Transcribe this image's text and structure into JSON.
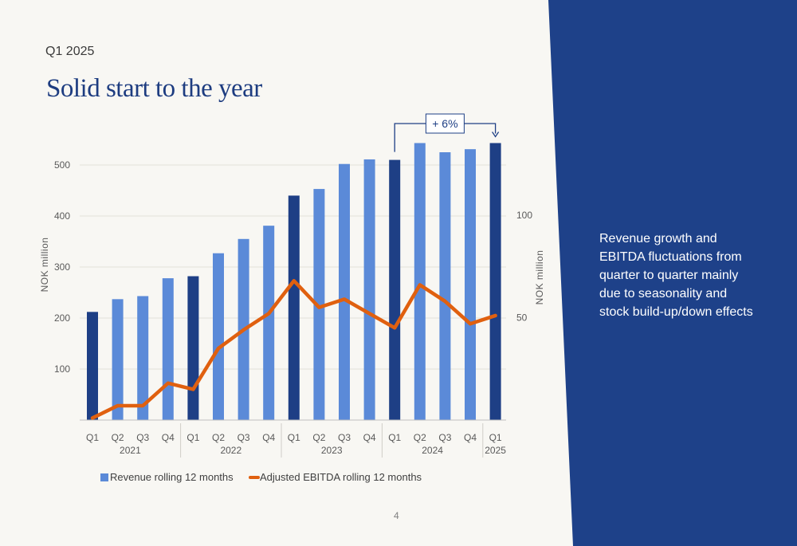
{
  "header": {
    "kicker": "Q1 2025",
    "title": "Solid start to the year"
  },
  "side_panel": {
    "text": "Revenue growth and EBITDA fluctuations from quarter to quarter mainly due to seasonality and stock build-up/down effects",
    "color": "#1e4189"
  },
  "footer": {
    "page_number": "4"
  },
  "chart_data": {
    "type": "bar",
    "categories": [
      "Q1",
      "Q2",
      "Q3",
      "Q4",
      "Q1",
      "Q2",
      "Q3",
      "Q4",
      "Q1",
      "Q2",
      "Q3",
      "Q4",
      "Q1",
      "Q2",
      "Q3",
      "Q4",
      "Q1"
    ],
    "year_groups": [
      {
        "label": "2021",
        "start": 0,
        "end": 3
      },
      {
        "label": "2022",
        "start": 4,
        "end": 7
      },
      {
        "label": "2023",
        "start": 8,
        "end": 11
      },
      {
        "label": "2024",
        "start": 12,
        "end": 15
      },
      {
        "label": "2025",
        "start": 16,
        "end": 16
      }
    ],
    "series": [
      {
        "name": "Revenue rolling 12 months",
        "type": "bar",
        "axis": "left",
        "values": [
          212,
          237,
          243,
          278,
          282,
          327,
          355,
          381,
          440,
          453,
          502,
          511,
          510,
          543,
          525,
          531,
          543
        ],
        "highlight_indices": [
          0,
          4,
          8,
          12,
          16
        ],
        "color": "#5b8ad8",
        "highlight_color": "#1e3f85"
      },
      {
        "name": "Adjusted EBITDA rolling 12 months",
        "type": "line",
        "axis": "right",
        "values": [
          1,
          7,
          7,
          18,
          15,
          35,
          44,
          52,
          68,
          55,
          59,
          52,
          45,
          66,
          58,
          47,
          51
        ],
        "color": "#e0600f"
      }
    ],
    "left_axis": {
      "label": "NOK million",
      "ticks": [
        100,
        200,
        300,
        400,
        500
      ],
      "ylim": [
        0,
        560
      ]
    },
    "right_axis": {
      "label": "NOK million",
      "ticks": [
        50,
        100
      ],
      "ylim": [
        0,
        140
      ]
    },
    "annotation": {
      "text": "+ 6%",
      "from_index": 12,
      "to_index": 16
    },
    "grid": true,
    "legend_position": "bottom-left"
  }
}
